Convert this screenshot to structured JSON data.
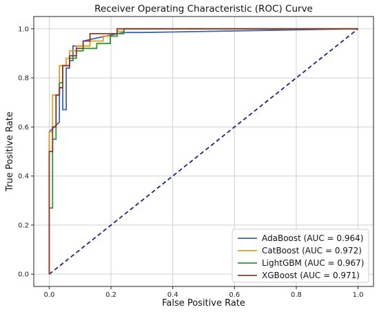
{
  "chart_data": {
    "type": "line",
    "title": "Receiver Operating Characteristic (ROC) Curve",
    "xlabel": "False Positive Rate",
    "ylabel": "True Positive Rate",
    "xlim": [
      -0.05,
      1.05
    ],
    "ylim": [
      -0.05,
      1.05
    ],
    "xticks": [
      0.0,
      0.2,
      0.4,
      0.6,
      0.8,
      1.0
    ],
    "yticks": [
      0.0,
      0.2,
      0.4,
      0.6,
      0.8,
      1.0
    ],
    "xtick_labels": [
      "0.0",
      "0.2",
      "0.4",
      "0.6",
      "0.8",
      "1.0"
    ],
    "ytick_labels": [
      "0.0",
      "0.2",
      "0.4",
      "0.6",
      "0.8",
      "1.0"
    ],
    "grid": true,
    "legend_position": "lower-right",
    "series": [
      {
        "name": "AdaBoost (AUC = 0.964)",
        "color": "#3a63b3",
        "x": [
          0,
          0,
          0.033,
          0.033,
          0.044,
          0.044,
          0.055,
          0.055,
          0.066,
          0.066,
          0.077,
          0.077,
          0.11,
          0.11,
          0.22,
          0.24,
          0.3,
          1.0
        ],
        "y": [
          0,
          0.58,
          0.62,
          0.76,
          0.76,
          0.67,
          0.67,
          0.84,
          0.84,
          0.87,
          0.87,
          0.93,
          0.93,
          0.95,
          0.98,
          0.985,
          0.985,
          1.0
        ]
      },
      {
        "name": "CatBoost (AUC = 0.972)",
        "color": "#e59b1a",
        "x": [
          0,
          0,
          0.011,
          0.011,
          0.033,
          0.033,
          0.055,
          0.055,
          0.066,
          0.066,
          0.088,
          0.088,
          0.132,
          0.132,
          0.175,
          0.175,
          0.22,
          0.22,
          0.242,
          0.242,
          1.0
        ],
        "y": [
          0,
          0.58,
          0.58,
          0.73,
          0.73,
          0.85,
          0.85,
          0.88,
          0.88,
          0.91,
          0.91,
          0.93,
          0.93,
          0.95,
          0.95,
          0.97,
          0.97,
          0.99,
          0.99,
          1.0,
          1.0
        ]
      },
      {
        "name": "LightGBM (AUC = 0.967)",
        "color": "#2a9a2a",
        "x": [
          0,
          0.0,
          0.011,
          0.011,
          0.022,
          0.022,
          0.033,
          0.033,
          0.044,
          0.044,
          0.066,
          0.066,
          0.088,
          0.088,
          0.11,
          0.11,
          0.154,
          0.154,
          0.198,
          0.198,
          0.22,
          0.22,
          0.242,
          0.242,
          1.0
        ],
        "y": [
          0,
          0.27,
          0.27,
          0.55,
          0.55,
          0.73,
          0.73,
          0.78,
          0.78,
          0.85,
          0.85,
          0.88,
          0.88,
          0.91,
          0.91,
          0.92,
          0.92,
          0.94,
          0.94,
          0.97,
          0.97,
          0.98,
          0.98,
          1.0,
          1.0
        ]
      },
      {
        "name": "XGBoost (AUC = 0.971)",
        "color": "#8b3a2a",
        "x": [
          0,
          0,
          0.011,
          0.011,
          0.022,
          0.022,
          0.033,
          0.033,
          0.044,
          0.044,
          0.066,
          0.066,
          0.088,
          0.088,
          0.11,
          0.11,
          0.132,
          0.132,
          0.22,
          0.22,
          1.0
        ],
        "y": [
          0,
          0.5,
          0.5,
          0.6,
          0.6,
          0.73,
          0.73,
          0.76,
          0.76,
          0.85,
          0.85,
          0.89,
          0.89,
          0.92,
          0.92,
          0.95,
          0.95,
          0.98,
          0.98,
          1.0,
          1.0
        ]
      }
    ],
    "reference_line": {
      "x": [
        0,
        1
      ],
      "y": [
        0,
        1
      ],
      "color": "#1a237e",
      "style": "dashed"
    }
  }
}
